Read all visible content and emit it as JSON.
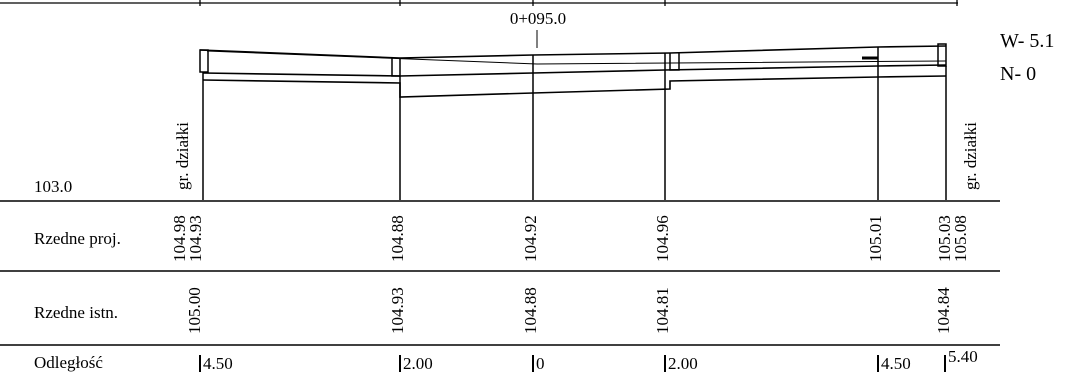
{
  "station": "0+095.0",
  "side_notes": {
    "w": "W- 5.1",
    "n": "N- 0"
  },
  "datum": "103.0",
  "plot_label": "gr. działki",
  "rows": {
    "proj_label": "Rzedne proj.",
    "istn_label": "Rzedne istn.",
    "dist_label": "Odległość"
  },
  "stations": [
    {
      "proj": [
        "104.98",
        "104.93"
      ],
      "istn": "105.00",
      "dist": "4.50"
    },
    {
      "proj": [
        "104.88"
      ],
      "istn": "104.93",
      "dist": "2.00"
    },
    {
      "proj": [
        "104.92"
      ],
      "istn": "104.88",
      "dist": "0"
    },
    {
      "proj": [
        "104.96"
      ],
      "istn": "104.81",
      "dist": "2.00"
    },
    {
      "proj": [
        "105.01"
      ],
      "istn": "",
      "dist": "4.50"
    },
    {
      "proj": [
        "105.03",
        "105.08"
      ],
      "istn": "104.84",
      "dist": "5.40"
    }
  ]
}
